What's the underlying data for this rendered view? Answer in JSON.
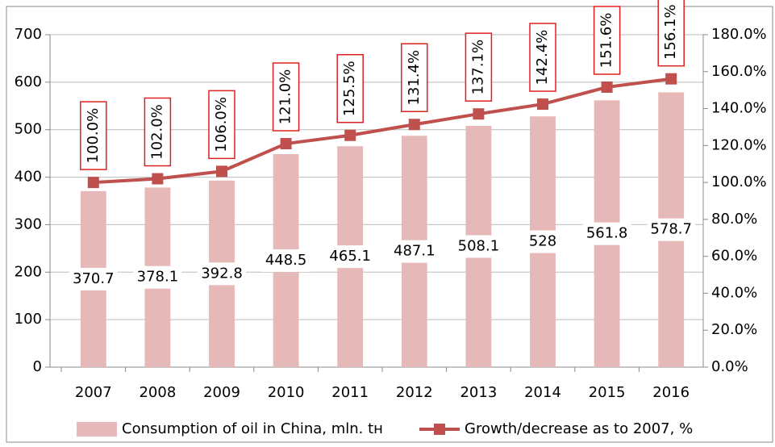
{
  "chart_data": {
    "type": "bar-line",
    "categories": [
      "2007",
      "2008",
      "2009",
      "2010",
      "2011",
      "2012",
      "2013",
      "2014",
      "2015",
      "2016"
    ],
    "series": [
      {
        "name": "Consumption of oil in China, mln. tн",
        "type": "bar",
        "color": "#e6b8b7",
        "values": [
          370.7,
          378.1,
          392.8,
          448.5,
          465.1,
          487.1,
          508.1,
          528,
          561.8,
          578.7
        ]
      },
      {
        "name": "Growth/decrease as to 2007, %",
        "type": "line",
        "axis": "y2",
        "color": "#c0504d",
        "values": [
          100.0,
          102.0,
          106.0,
          121.0,
          125.5,
          131.4,
          137.1,
          142.4,
          151.6,
          156.1
        ],
        "value_labels": [
          "100.0%",
          "102.0%",
          "106.0%",
          "121.0%",
          "125.5%",
          "131.4%",
          "137.1%",
          "142.4%",
          "151.6%",
          "156.1%"
        ]
      }
    ],
    "ylim": [
      0,
      700
    ],
    "yticks": [
      0,
      100,
      200,
      300,
      400,
      500,
      600,
      700
    ],
    "y2lim": [
      0,
      180
    ],
    "y2ticks": [
      {
        "value": 0,
        "label": "0.0%"
      },
      {
        "value": 20,
        "label": "20.0%"
      },
      {
        "value": 40,
        "label": "40.0%"
      },
      {
        "value": 60,
        "label": "60.0%"
      },
      {
        "value": 80,
        "label": "80.0%"
      },
      {
        "value": 100,
        "label": "100.0%"
      },
      {
        "value": 120,
        "label": "120.0%"
      },
      {
        "value": 140,
        "label": "140.0%"
      },
      {
        "value": 160,
        "label": "160.0%"
      },
      {
        "value": 180,
        "label": "180.0%"
      }
    ],
    "grid": true,
    "legend": "bottom"
  }
}
